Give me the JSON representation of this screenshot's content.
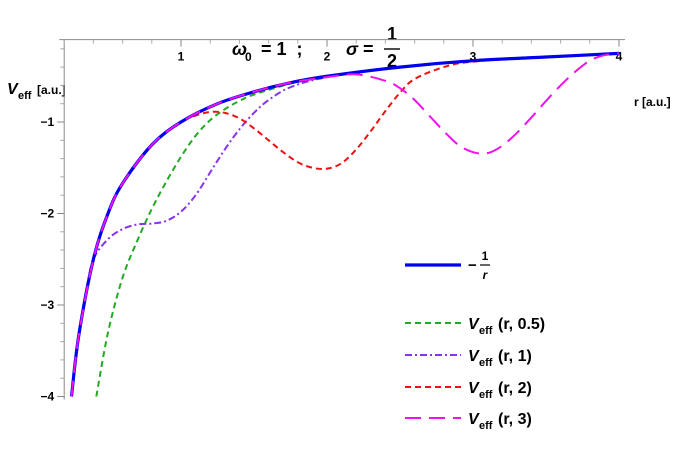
{
  "chart_data": {
    "type": "line",
    "title": {
      "omega": "ω",
      "omega_sub": "0",
      "eq1": " = 1  ;  ",
      "sigma": "σ",
      "eq2": " = ",
      "frac_num": "1",
      "frac_den": "2"
    },
    "xlabel": "r [a.u.]",
    "ylabel": {
      "main": "V",
      "sub": "eff",
      "unit": "[a.u.]"
    },
    "xlim": [
      0.2,
      4.0
    ],
    "ylim": [
      -4.0,
      -0.1
    ],
    "x_ticks": [
      {
        "value": 1,
        "label": "1"
      },
      {
        "value": 2,
        "label": "2"
      },
      {
        "value": 3,
        "label": "3"
      },
      {
        "value": 4,
        "label": "4"
      }
    ],
    "y_ticks": [
      {
        "value": -1,
        "label": "−1"
      },
      {
        "value": -2,
        "label": "−2"
      },
      {
        "value": -3,
        "label": "−3"
      },
      {
        "value": -4,
        "label": "−4"
      }
    ],
    "legend_position": "bottom-right",
    "series": [
      {
        "key": "coulomb",
        "legend": {
          "prefix": "−",
          "num": "1",
          "den": "r"
        },
        "color": "#0000ee",
        "style": "solid",
        "x": [
          0.25,
          0.3,
          0.4,
          0.5,
          0.6,
          0.8,
          1.0,
          1.25,
          1.5,
          1.75,
          2.0,
          2.5,
          3.0,
          3.5,
          4.0
        ],
        "y": [
          -4.0,
          -3.33,
          -2.5,
          -2.0,
          -1.67,
          -1.25,
          -1.0,
          -0.8,
          -0.67,
          -0.57,
          -0.5,
          -0.4,
          -0.33,
          -0.29,
          -0.25
        ]
      },
      {
        "key": "veff_05",
        "legend": {
          "main": "V",
          "sub": "eff",
          "args": "(r, 0.5)"
        },
        "color": "#22aa22",
        "style": "dashed",
        "x": [
          0.42,
          0.5,
          0.6,
          0.7,
          0.8,
          0.9,
          1.0,
          1.1,
          1.2,
          1.3,
          1.4,
          1.5,
          1.75,
          2.0,
          2.5,
          3.0,
          4.0
        ],
        "y": [
          -4.0,
          -3.3,
          -2.7,
          -2.3,
          -1.95,
          -1.65,
          -1.38,
          -1.15,
          -0.98,
          -0.86,
          -0.77,
          -0.7,
          -0.58,
          -0.5,
          -0.4,
          -0.33,
          -0.25
        ]
      },
      {
        "key": "veff_1",
        "legend": {
          "main": "V",
          "sub": "eff",
          "args": "(r, 1)"
        },
        "color": "#8833ee",
        "style": "dashdot",
        "x": [
          0.3,
          0.35,
          0.4,
          0.5,
          0.6,
          0.7,
          0.8,
          0.9,
          1.0,
          1.1,
          1.2,
          1.3,
          1.4,
          1.5,
          1.6,
          1.75,
          2.0,
          2.5,
          3.0,
          4.0
        ],
        "y": [
          -3.3,
          -2.85,
          -2.5,
          -2.28,
          -2.17,
          -2.12,
          -2.11,
          -2.08,
          -1.98,
          -1.8,
          -1.55,
          -1.3,
          -1.08,
          -0.9,
          -0.76,
          -0.62,
          -0.51,
          -0.4,
          -0.33,
          -0.25
        ]
      },
      {
        "key": "veff_2",
        "legend": {
          "main": "V",
          "sub": "eff",
          "args": "(r, 2)"
        },
        "color": "#ee1111",
        "style": "dashed",
        "x": [
          0.25,
          0.3,
          0.4,
          0.5,
          0.6,
          0.8,
          1.0,
          1.1,
          1.2,
          1.3,
          1.4,
          1.5,
          1.6,
          1.7,
          1.8,
          1.9,
          2.0,
          2.1,
          2.2,
          2.3,
          2.4,
          2.5,
          2.6,
          2.8,
          3.0,
          3.5,
          4.0
        ],
        "y": [
          -4.0,
          -3.33,
          -2.5,
          -2.0,
          -1.67,
          -1.25,
          -1.0,
          -0.93,
          -0.89,
          -0.9,
          -0.96,
          -1.07,
          -1.2,
          -1.33,
          -1.44,
          -1.5,
          -1.51,
          -1.45,
          -1.3,
          -1.1,
          -0.88,
          -0.68,
          -0.53,
          -0.4,
          -0.34,
          -0.29,
          -0.25
        ]
      },
      {
        "key": "veff_3",
        "legend": {
          "main": "V",
          "sub": "eff",
          "args": "(r, 3)"
        },
        "color": "#ee11ee",
        "style": "longdash",
        "x": [
          0.25,
          0.3,
          0.4,
          0.5,
          0.6,
          0.8,
          1.0,
          1.25,
          1.5,
          1.75,
          2.0,
          2.2,
          2.4,
          2.5,
          2.6,
          2.7,
          2.8,
          2.9,
          3.0,
          3.1,
          3.2,
          3.3,
          3.4,
          3.5,
          3.6,
          3.7,
          3.8,
          3.9,
          4.0
        ],
        "y": [
          -4.0,
          -3.33,
          -2.5,
          -2.0,
          -1.67,
          -1.25,
          -1.0,
          -0.8,
          -0.67,
          -0.57,
          -0.51,
          -0.48,
          -0.55,
          -0.63,
          -0.76,
          -0.93,
          -1.1,
          -1.25,
          -1.33,
          -1.34,
          -1.26,
          -1.12,
          -0.95,
          -0.77,
          -0.6,
          -0.45,
          -0.33,
          -0.27,
          -0.25
        ]
      }
    ]
  }
}
